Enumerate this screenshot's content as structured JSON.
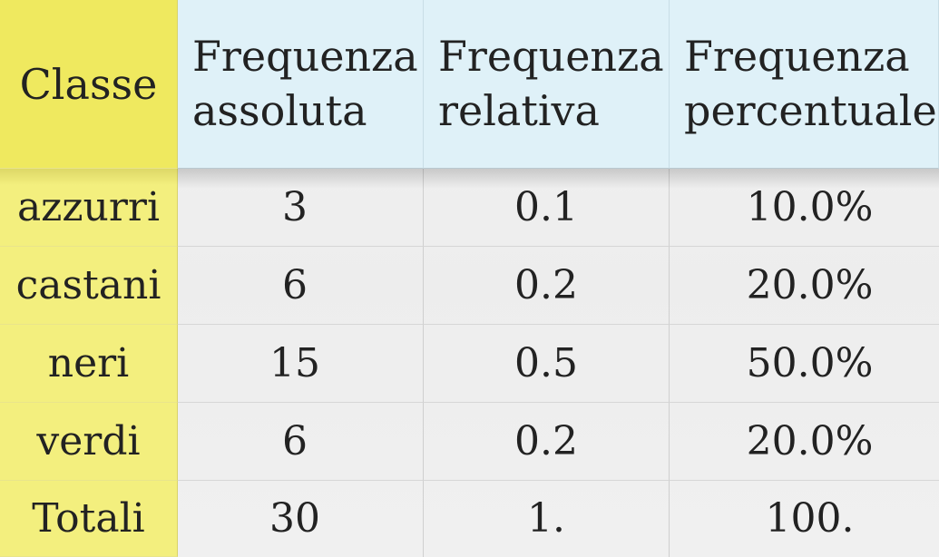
{
  "table": {
    "headers": {
      "classe": "Classe",
      "assoluta_line1": "Frequenza",
      "assoluta_line2": "assoluta",
      "relativa_line1": "Frequenza",
      "relativa_line2": "relativa",
      "percentuale_line1": "Frequenza",
      "percentuale_line2": "percentuale"
    },
    "rows": [
      {
        "classe": "azzurri",
        "assoluta": "3",
        "relativa": "0.1",
        "percentuale": "10.0%"
      },
      {
        "classe": "castani",
        "assoluta": "6",
        "relativa": "0.2",
        "percentuale": "20.0%"
      },
      {
        "classe": "neri",
        "assoluta": "15",
        "relativa": "0.5",
        "percentuale": "50.0%"
      },
      {
        "classe": "verdi",
        "assoluta": "6",
        "relativa": "0.2",
        "percentuale": "20.0%"
      },
      {
        "classe": "Totali",
        "assoluta": "30",
        "relativa": "1.",
        "percentuale": "100."
      }
    ]
  },
  "colors": {
    "class_column": "#f3ef7e",
    "header_row": "#dff1f8",
    "body": "#efefef"
  }
}
